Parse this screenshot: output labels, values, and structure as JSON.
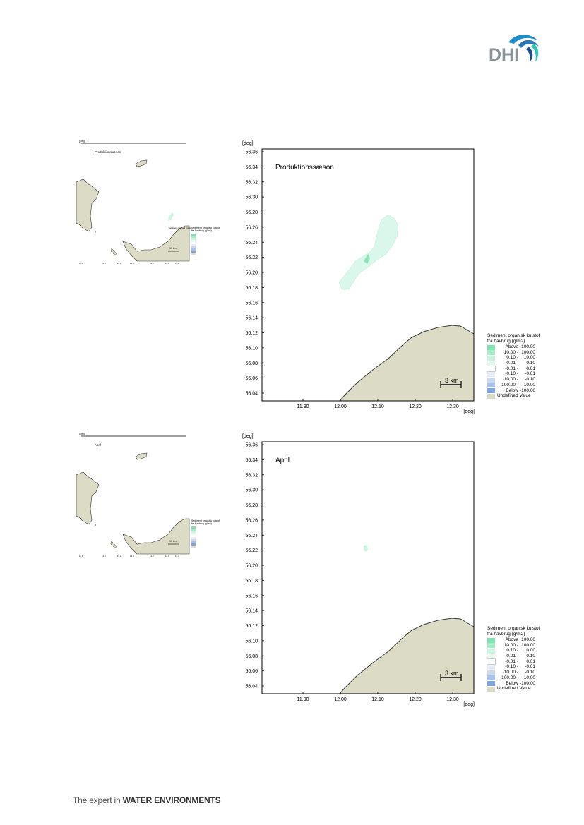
{
  "logo": {
    "text": "DHI",
    "colors": {
      "text": "#8a929a",
      "wave_dark": "#1b4f8a",
      "wave_mid": "#1d8fd0",
      "wave_light": "#2ec4b6"
    }
  },
  "colors": {
    "land": "#dcdcc6",
    "land_stroke": "#4a4a4a",
    "plume": "#d9f7ea",
    "plume_core": "#8fe3b8",
    "frame": "#000000"
  },
  "maps": [
    {
      "title": "Produktionssæson",
      "mini_title": "Produktionssæson",
      "unit": "[deg]",
      "yticks": [
        "56.36",
        "56.34",
        "56.32",
        "56.30",
        "56.28",
        "56.26",
        "56.24",
        "56.22",
        "56.20",
        "56.18",
        "56.16",
        "56.14",
        "56.12",
        "56.10",
        "56.08",
        "56.06",
        "56.04"
      ],
      "xticks": [
        "11.90",
        "12.00",
        "12.10",
        "12.20",
        "12.30"
      ],
      "scale_label": "3 km",
      "mini_scale_label": "10 km"
    },
    {
      "title": "April",
      "mini_title": "April",
      "unit": "[deg]",
      "yticks": [
        "56.36",
        "56.34",
        "56.32",
        "56.30",
        "56.28",
        "56.26",
        "56.24",
        "56.22",
        "56.20",
        "56.18",
        "56.16",
        "56.14",
        "56.12",
        "56.10",
        "56.08",
        "56.06",
        "56.04"
      ],
      "xticks": [
        "11.90",
        "12.00",
        "12.10",
        "12.20",
        "12.30"
      ],
      "scale_label": "3 km",
      "mini_scale_label": "10 km"
    }
  ],
  "legend": {
    "title_line1": "Sediment organisk kulstof",
    "title_line2": "fra havbrug (g/m2)",
    "items": [
      {
        "from": "Above",
        "to": "100.00",
        "color": "#7fe3b2"
      },
      {
        "from": "10.00 -",
        "to": "100.00",
        "color": "#a6ecc8"
      },
      {
        "from": "0.10 -",
        "to": "10.00",
        "color": "#c9f4dd"
      },
      {
        "from": "0.01 -",
        "to": "0.10",
        "color": "#e6faef"
      },
      {
        "from": "-0.01 -",
        "to": "0.01",
        "color": "#ffffff"
      },
      {
        "from": "-0.10 -",
        "to": "-0.01",
        "color": "#e8eef8"
      },
      {
        "from": "-10.00 -",
        "to": "-0.10",
        "color": "#cbd9f0"
      },
      {
        "from": "-100.00 -",
        "to": "-10.00",
        "color": "#a9c2ea"
      },
      {
        "from": "Below",
        "to": "-100.00",
        "color": "#7ea6e0"
      },
      {
        "from": "Undefined Value",
        "to": "",
        "color": "#dcdcc6"
      }
    ]
  },
  "footer": {
    "prefix": "The expert in ",
    "bold": "WATER ENVIRONMENTS"
  }
}
